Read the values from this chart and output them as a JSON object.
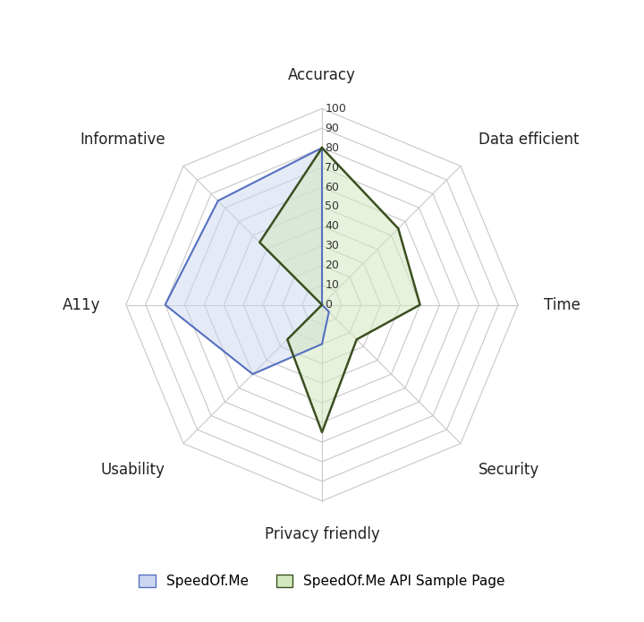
{
  "categories": [
    "Accuracy",
    "Data efficient",
    "Time",
    "Security",
    "Privacy friendly",
    "Usability",
    "A11y",
    "Informative"
  ],
  "series": [
    {
      "label": "SpeedOf.Me",
      "values": [
        80,
        0,
        0,
        5,
        20,
        50,
        80,
        75
      ],
      "fill_color": "#ccd6f0",
      "fill_alpha": 0.5,
      "line_color": "#5570c0",
      "line_width": 1.5
    },
    {
      "label": "SpeedOf.Me API Sample Page",
      "values": [
        80,
        55,
        50,
        25,
        65,
        25,
        0,
        45
      ],
      "fill_color": "#d4e8c0",
      "fill_alpha": 0.55,
      "line_color": "#3a5020",
      "line_width": 1.8
    }
  ],
  "radial_max": 100,
  "radial_ticks": [
    0,
    10,
    20,
    30,
    40,
    50,
    60,
    70,
    80,
    90,
    100
  ],
  "grid_color": "#c8c8c8",
  "grid_linewidth": 0.8,
  "background_color": "#ffffff",
  "label_fontsize": 12,
  "tick_fontsize": 9,
  "legend_fontsize": 11,
  "figsize": [
    7.2,
    6.95
  ],
  "dpi": 100
}
